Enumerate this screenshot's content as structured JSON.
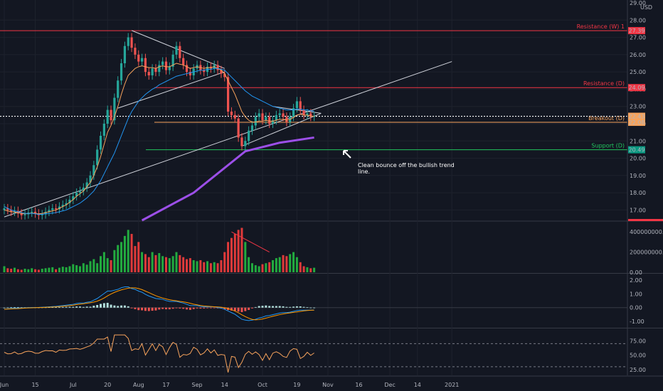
{
  "chart_data": [
    {
      "type": "candlestick",
      "pane": "price",
      "currency": "USD",
      "ylim": [
        16.4,
        29.0
      ],
      "y_ticks": [
        "17.00",
        "18.00",
        "19.00",
        "20.00",
        "21.00",
        "22.00",
        "23.00",
        "24.00",
        "25.00",
        "26.00",
        "27.00",
        "28.00",
        "29.00"
      ],
      "price_tags": [
        {
          "value": 27.39,
          "label": "27.39",
          "color": "#f23645"
        },
        {
          "value": 24.09,
          "label": "24.09",
          "color": "#f23645"
        },
        {
          "value": 22.43,
          "label": "22.43",
          "color": "#f7a35c"
        },
        {
          "value": 22.08,
          "label": "22.08",
          "color": "#f7a35c"
        },
        {
          "value": 20.49,
          "label": "20.49",
          "color": "#089981"
        }
      ],
      "horizontal_levels": [
        {
          "name": "Resistance (W) 1",
          "value": 27.39,
          "color": "#f23645"
        },
        {
          "name": "Resistance (D)",
          "value": 24.09,
          "color": "#f23645"
        },
        {
          "name": "Breakout (D)",
          "value": 22.08,
          "color": "#f7a35c"
        },
        {
          "name": "Support (D)",
          "value": 20.49,
          "color": "#22c55e"
        }
      ],
      "annotation": {
        "text": "Clean bounce off the bullish trend line.",
        "lines": [
          "Clean bounce off the bullish trend",
          "line."
        ]
      },
      "closes": [
        17.1,
        17.0,
        16.9,
        16.95,
        16.8,
        16.7,
        16.75,
        16.85,
        16.9,
        16.8,
        16.7,
        16.75,
        16.9,
        17.0,
        17.1,
        17.05,
        17.2,
        17.3,
        17.4,
        17.6,
        17.8,
        18.0,
        18.1,
        18.3,
        18.6,
        19.0,
        19.6,
        20.5,
        21.3,
        22.0,
        22.8,
        22.2,
        23.5,
        24.5,
        25.5,
        26.5,
        27.0,
        26.4,
        26.0,
        25.6,
        25.8,
        25.0,
        24.8,
        25.2,
        25.0,
        25.4,
        25.6,
        25.1,
        25.3,
        26.0,
        26.5,
        25.8,
        25.4,
        25.0,
        24.8,
        25.2,
        25.4,
        25.1,
        25.0,
        25.3,
        25.2,
        25.4,
        25.1,
        24.9,
        24.7,
        22.7,
        22.5,
        22.3,
        21.2,
        20.7,
        21.0,
        21.6,
        21.9,
        22.4,
        22.6,
        22.2,
        22.4,
        22.0,
        22.2,
        22.5,
        22.6,
        22.4,
        22.1,
        22.4,
        22.9,
        23.3,
        22.8,
        22.5,
        22.6,
        22.4,
        22.43
      ],
      "ma20": [
        17.0,
        16.95,
        16.9,
        16.88,
        16.85,
        16.8,
        16.78,
        16.8,
        16.82,
        16.8,
        16.78,
        16.8,
        16.85,
        16.9,
        16.95,
        17.0,
        17.1,
        17.2,
        17.3,
        17.45,
        17.6,
        17.8,
        17.95,
        18.1,
        18.35,
        18.6,
        19.0,
        19.5,
        20.1,
        20.8,
        21.5,
        21.9,
        22.4,
        23.0,
        23.7,
        24.3,
        24.8,
        25.0,
        25.2,
        25.3,
        25.35,
        25.3,
        25.25,
        25.25,
        25.2,
        25.3,
        25.35,
        25.3,
        25.3,
        25.4,
        25.5,
        25.45,
        25.4,
        25.3,
        25.2,
        25.25,
        25.3,
        25.25,
        25.2,
        25.25,
        25.25,
        25.3,
        25.2,
        25.1,
        24.9,
        24.5,
        24.1,
        23.7,
        23.2,
        22.7,
        22.4,
        22.2,
        22.1,
        22.1,
        22.15,
        22.15,
        22.2,
        22.15,
        22.15,
        22.2,
        22.25,
        22.25,
        22.2,
        22.25,
        22.35,
        22.5,
        22.55,
        22.5,
        22.5,
        22.45,
        22.43
      ],
      "ma50": [
        17.2,
        17.1,
        17.0,
        16.95,
        16.9,
        16.85,
        16.8,
        16.8,
        16.8,
        16.78,
        16.75,
        16.75,
        16.78,
        16.8,
        16.82,
        16.85,
        16.9,
        16.95,
        17.0,
        17.1,
        17.2,
        17.3,
        17.4,
        17.55,
        17.7,
        17.9,
        18.1,
        18.4,
        18.7,
        19.1,
        19.5,
        19.9,
        20.3,
        20.8,
        21.3,
        21.8,
        22.3,
        22.7,
        23.0,
        23.3,
        23.5,
        23.7,
        23.85,
        24.0,
        24.1,
        24.25,
        24.35,
        24.45,
        24.55,
        24.65,
        24.75,
        24.8,
        24.85,
        24.9,
        24.95,
        25.0,
        25.05,
        25.1,
        25.1,
        25.15,
        25.15,
        25.2,
        25.2,
        25.15,
        25.1,
        24.9,
        24.7,
        24.5,
        24.3,
        24.1,
        23.9,
        23.75,
        23.6,
        23.5,
        23.4,
        23.3,
        23.2,
        23.1,
        23.0,
        22.95,
        22.9,
        22.85,
        22.8,
        22.8,
        22.8,
        22.85,
        22.85,
        22.8,
        22.8,
        22.75,
        22.72
      ],
      "ma200": [
        {
          "i": 40,
          "v": 16.4
        },
        {
          "i": 55,
          "v": 18.0
        },
        {
          "i": 70,
          "v": 20.4
        },
        {
          "i": 80,
          "v": 20.9
        },
        {
          "i": 90,
          "v": 21.2
        }
      ],
      "trend_lines": [
        {
          "from": {
            "i": 0,
            "v": 16.6
          },
          "to": {
            "i": 130,
            "v": 25.6
          },
          "color": "#d1d4dc"
        },
        {
          "from": {
            "i": 37,
            "v": 27.4
          },
          "to": {
            "i": 64,
            "v": 25.2
          },
          "color": "#d1d4dc"
        },
        {
          "from": {
            "i": 33,
            "v": 22.9
          },
          "to": {
            "i": 64,
            "v": 25.0
          },
          "color": "#d1d4dc"
        },
        {
          "from": {
            "i": 69,
            "v": 20.7
          },
          "to": {
            "i": 92,
            "v": 22.6
          },
          "color": "#d1d4dc"
        },
        {
          "from": {
            "i": 78,
            "v": 23.0
          },
          "to": {
            "i": 92,
            "v": 22.6
          },
          "color": "#d1d4dc"
        }
      ]
    },
    {
      "type": "bar",
      "pane": "volume",
      "ylim": [
        0,
        500000000
      ],
      "y_ticks": [
        "400000000.00",
        "200000000.00",
        "0.00"
      ],
      "values": [
        60,
        40,
        35,
        45,
        30,
        25,
        35,
        30,
        40,
        30,
        25,
        35,
        40,
        45,
        50,
        30,
        45,
        55,
        50,
        60,
        80,
        70,
        60,
        90,
        75,
        110,
        130,
        90,
        160,
        200,
        140,
        120,
        220,
        270,
        300,
        360,
        420,
        380,
        260,
        300,
        200,
        180,
        150,
        200,
        170,
        190,
        160,
        150,
        140,
        160,
        200,
        170,
        150,
        130,
        140,
        120,
        110,
        120,
        100,
        110,
        90,
        100,
        90,
        120,
        200,
        300,
        340,
        380,
        420,
        440,
        300,
        150,
        90,
        70,
        60,
        80,
        90,
        100,
        120,
        140,
        150,
        170,
        160,
        180,
        200,
        150,
        100,
        60,
        50,
        40,
        45
      ],
      "divergence_line": {
        "from": {
          "i": 66,
          "v": 400
        },
        "to": {
          "i": 77,
          "v": 200
        },
        "color": "#f23645"
      }
    },
    {
      "type": "line",
      "pane": "macd",
      "ylim": [
        -1.4,
        2.4
      ],
      "y_ticks": [
        "2.00",
        "1.00",
        "0.00",
        "-1.00"
      ]
    },
    {
      "type": "line",
      "pane": "rsi",
      "ylim": [
        15,
        95
      ],
      "y_ticks": [
        "75.00",
        "50.00",
        "25.00"
      ],
      "levels": [
        70,
        30
      ]
    }
  ],
  "x_axis": {
    "ticks": [
      {
        "label": "Jun",
        "i": 0
      },
      {
        "label": "15",
        "i": 9
      },
      {
        "label": "Jul",
        "i": 20
      },
      {
        "label": "20",
        "i": 30
      },
      {
        "label": "Aug",
        "i": 39
      },
      {
        "label": "17",
        "i": 47
      },
      {
        "label": "Sep",
        "i": 56
      },
      {
        "label": "14",
        "i": 64
      },
      {
        "label": "Oct",
        "i": 75
      },
      {
        "label": "19",
        "i": 85
      },
      {
        "label": "Nov",
        "i": 94
      },
      {
        "label": "16",
        "i": 103
      },
      {
        "label": "Dec",
        "i": 112
      },
      {
        "label": "14",
        "i": 120
      },
      {
        "label": "2021",
        "i": 130
      }
    ]
  },
  "colors": {
    "up": "#26a69a",
    "down": "#ef5350",
    "volume_up": "#22ab3f",
    "volume_down": "#e03a3a",
    "ma20": "#f7a35c",
    "ma50": "#2196f3",
    "ma200": "#9c4fe8",
    "macd": "#2196f3",
    "signal": "#ff9800",
    "rsi": "#f7a35c",
    "background": "#131722",
    "grid": "#1e222d"
  }
}
